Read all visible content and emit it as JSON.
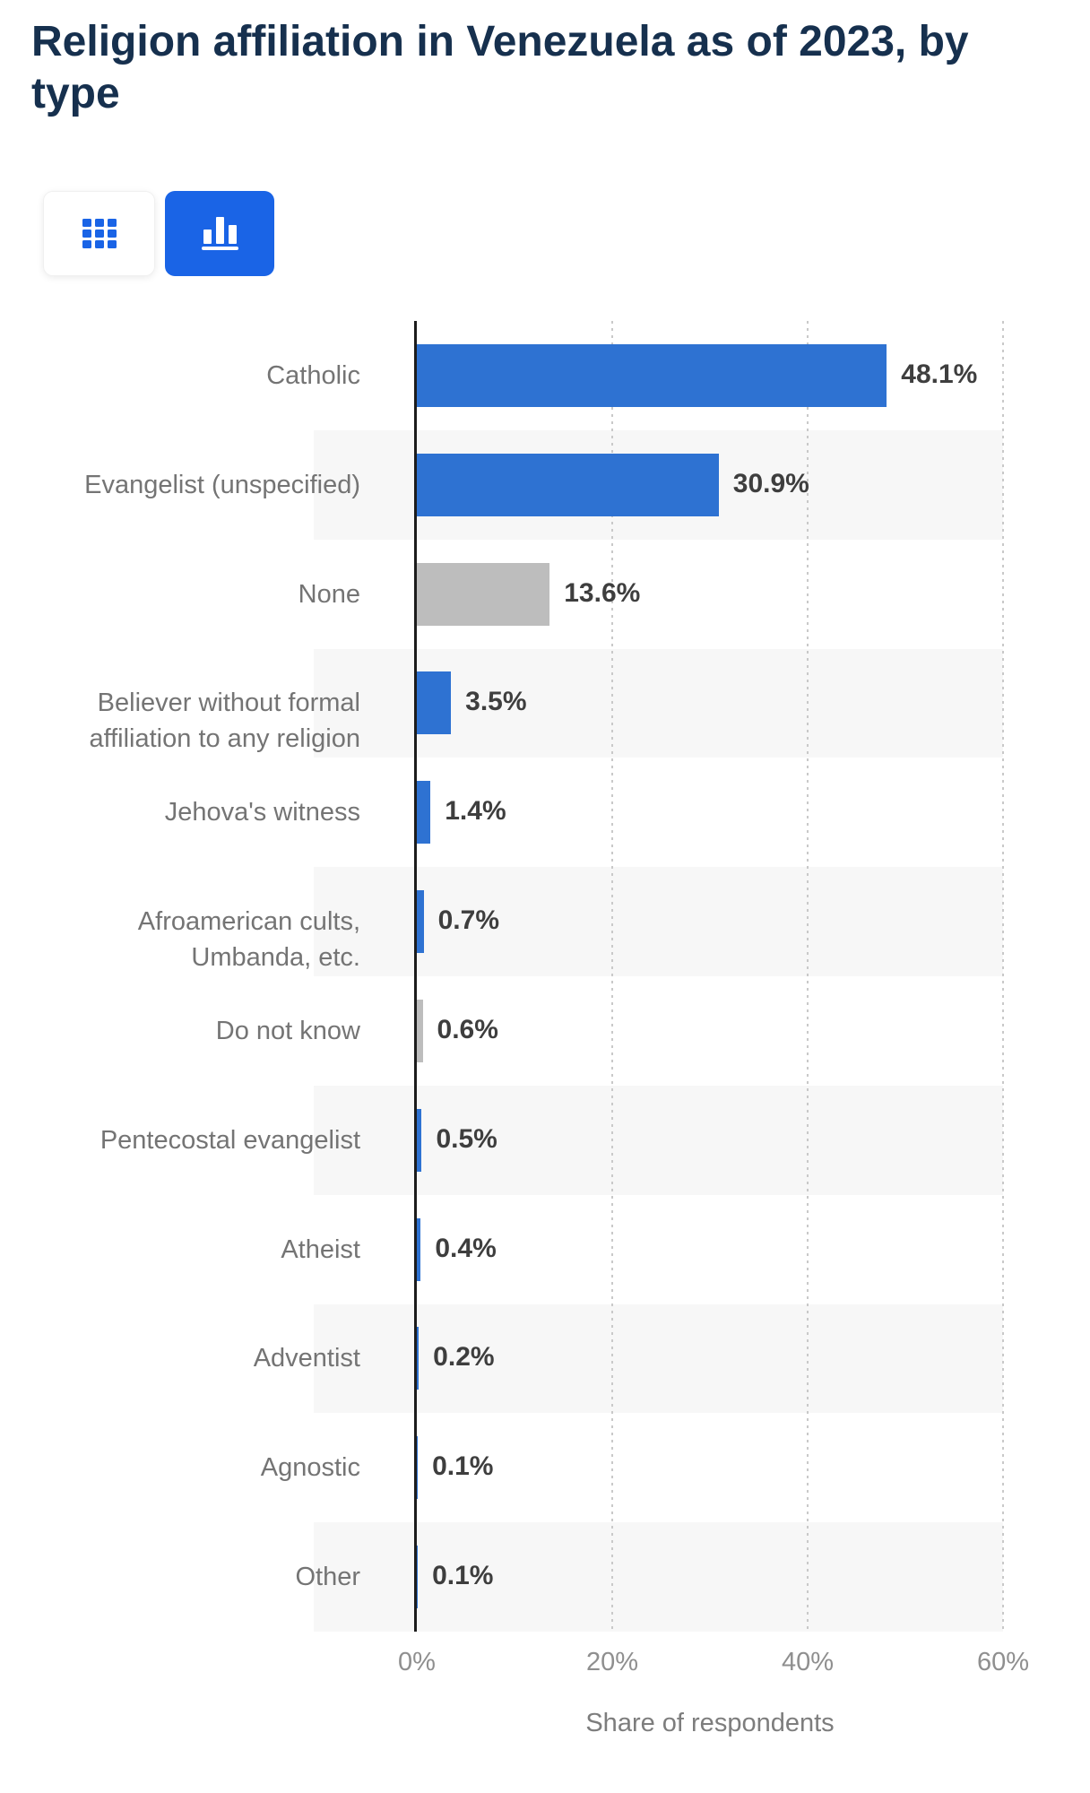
{
  "page": {
    "title_line1": "Religion affiliation in Venezuela as of 2023, by",
    "title_line2": "type"
  },
  "toolbar": {
    "table_button": {
      "name": "table-view",
      "selected": false
    },
    "chart_button": {
      "name": "bar-chart-view",
      "selected": true
    },
    "accent_color": "#1a64e6"
  },
  "chart_data": {
    "type": "bar",
    "orientation": "horizontal",
    "title": "Religion affiliation in Venezuela as of 2023, by type",
    "xlabel": "Share of respondents",
    "xlim": [
      0,
      60
    ],
    "x_ticks": [
      {
        "value": 0,
        "label": "0%"
      },
      {
        "value": 20,
        "label": "20%"
      },
      {
        "value": 40,
        "label": "40%"
      },
      {
        "value": 60,
        "label": "60%"
      }
    ],
    "grid": "dotted-vertical",
    "legend": "none",
    "colors": {
      "blue": "#2e72d2",
      "gray": "#bdbdbd"
    },
    "stripe_color": "#f7f7f7",
    "rows": [
      {
        "category": "Catholic",
        "value": 48.1,
        "label": "48.1%",
        "color": "blue"
      },
      {
        "category": "Evangelist (unspecified)",
        "value": 30.9,
        "label": "30.9%",
        "color": "blue"
      },
      {
        "category": "None",
        "value": 13.6,
        "label": "13.6%",
        "color": "gray"
      },
      {
        "category": "Believer without formal affiliation to any religion",
        "value": 3.5,
        "label": "3.5%",
        "color": "blue"
      },
      {
        "category": "Jehova's witness",
        "value": 1.4,
        "label": "1.4%",
        "color": "blue"
      },
      {
        "category": "Afroamerican cults, Umbanda, etc.",
        "value": 0.7,
        "label": "0.7%",
        "color": "blue"
      },
      {
        "category": "Do not know",
        "value": 0.6,
        "label": "0.6%",
        "color": "gray"
      },
      {
        "category": "Pentecostal evangelist",
        "value": 0.5,
        "label": "0.5%",
        "color": "blue"
      },
      {
        "category": "Atheist",
        "value": 0.4,
        "label": "0.4%",
        "color": "blue"
      },
      {
        "category": "Adventist",
        "value": 0.2,
        "label": "0.2%",
        "color": "blue"
      },
      {
        "category": "Agnostic",
        "value": 0.1,
        "label": "0.1%",
        "color": "blue"
      },
      {
        "category": "Other",
        "value": 0.1,
        "label": "0.1%",
        "color": "blue"
      }
    ]
  }
}
